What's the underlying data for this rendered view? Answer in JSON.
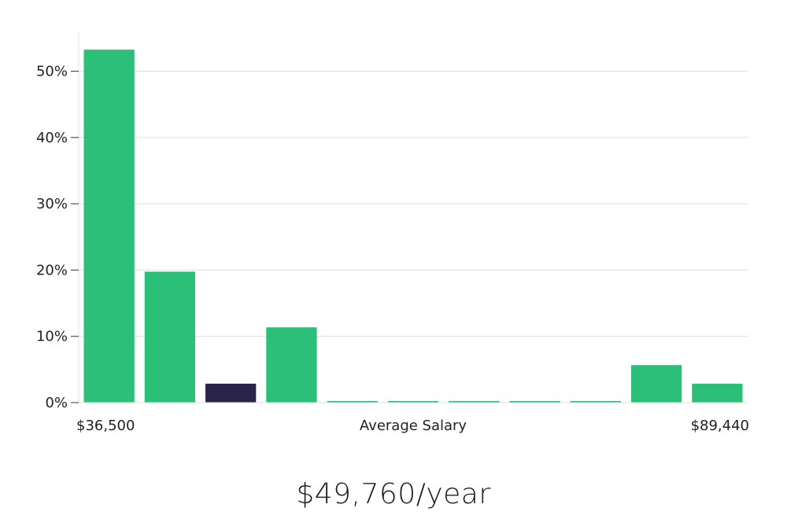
{
  "colors": {
    "bar": "#2bbf77",
    "highlight": "#2a2548",
    "grid": "#dddddd",
    "axis": "#e2e2e2"
  },
  "chart_data": {
    "type": "bar",
    "title": "",
    "xlabel": "Average Salary",
    "ylabel": "",
    "x_min_label": "$36,500",
    "x_max_label": "$89,440",
    "ylim": [
      0,
      56
    ],
    "yticks": [
      0,
      10,
      20,
      30,
      40,
      50
    ],
    "ytick_labels": [
      "0%",
      "10%",
      "20%",
      "30%",
      "40%",
      "50%"
    ],
    "values": [
      53.2,
      19.7,
      2.8,
      11.3,
      0.1,
      0.1,
      0.1,
      0.1,
      0.1,
      5.6,
      2.8
    ],
    "highlight_index": 2,
    "gridlines": true
  },
  "salary_text": "$49,760/year"
}
